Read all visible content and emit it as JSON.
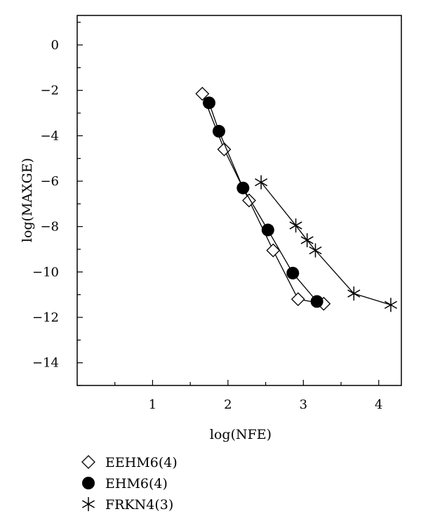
{
  "chart_data": {
    "type": "line",
    "title": "",
    "xlabel": "log(NFE)",
    "ylabel": "log(MAXGE)",
    "xlim": [
      0,
      4.3
    ],
    "ylim": [
      -15,
      1.3
    ],
    "x_ticks": [
      1,
      2,
      3,
      4
    ],
    "x_tick_labels": [
      "1",
      "2",
      "3",
      "4"
    ],
    "y_ticks": [
      0,
      -2,
      -4,
      -6,
      -8,
      -10,
      -12,
      -14
    ],
    "y_tick_labels": [
      "0",
      "−2",
      "−4",
      "−6",
      "−8",
      "−10",
      "−12",
      "−14"
    ],
    "grid": false,
    "legend_position": "bottom-left",
    "series": [
      {
        "name": "EEHM6(4)",
        "marker": "diamond-open",
        "x": [
          1.66,
          1.95,
          2.28,
          2.6,
          2.93,
          3.27
        ],
        "y": [
          -2.15,
          -4.6,
          -6.85,
          -9.05,
          -11.2,
          -11.4
        ]
      },
      {
        "name": "EHM6(4)",
        "marker": "circle-filled",
        "x": [
          1.75,
          1.88,
          2.2,
          2.53,
          2.86,
          3.18
        ],
        "y": [
          -2.55,
          -3.8,
          -6.3,
          -8.15,
          -10.05,
          -11.3
        ]
      },
      {
        "name": "FRKN4(3)",
        "marker": "star",
        "x": [
          2.44,
          2.9,
          3.05,
          3.16,
          3.67,
          4.16
        ],
        "y": [
          -6.05,
          -7.95,
          -8.6,
          -9.05,
          -10.95,
          -11.45
        ]
      }
    ]
  }
}
